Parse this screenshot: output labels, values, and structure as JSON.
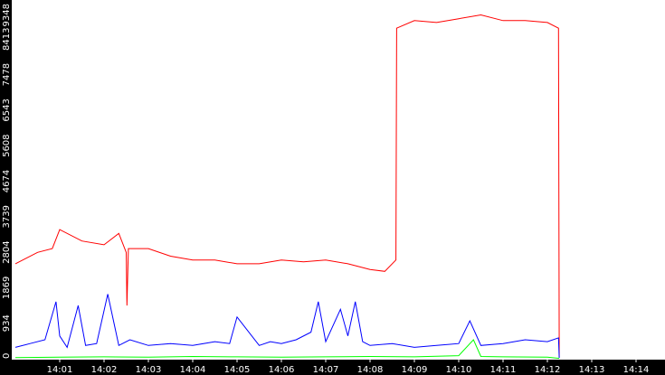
{
  "chart_data": {
    "type": "line",
    "title": "",
    "xlabel": "",
    "ylabel": "",
    "background": "#ffffff",
    "axis_background": "#000000",
    "tick_label_color": "#ffffff",
    "grid": false,
    "ylim": [
      0,
      9348
    ],
    "y_ticks": [
      "0",
      "934",
      "1869",
      "2804",
      "3739",
      "4674",
      "5608",
      "6543",
      "7478",
      "8413",
      "9348"
    ],
    "x_ticks": [
      "14:01",
      "14:02",
      "14:03",
      "14:04",
      "14:05",
      "14:06",
      "14:07",
      "14:08",
      "14:09",
      "14:10",
      "14:11",
      "14:12",
      "14:13",
      "14:14"
    ],
    "series": [
      {
        "color": "#ff0000",
        "x": [
          "14:00:00",
          "14:00:30",
          "14:00:50",
          "14:01:00",
          "14:01:30",
          "14:02:00",
          "14:02:20",
          "14:02:30",
          "14:02:31",
          "14:02:33",
          "14:03:00",
          "14:03:30",
          "14:04:00",
          "14:04:30",
          "14:05:00",
          "14:05:30",
          "14:06:00",
          "14:06:30",
          "14:07:00",
          "14:07:30",
          "14:08:00",
          "14:08:20",
          "14:08:35",
          "14:08:36",
          "14:09:00",
          "14:09:30",
          "14:10:00",
          "14:10:30",
          "14:11:00",
          "14:11:30",
          "14:12:00",
          "14:12:15",
          "14:12:16"
        ],
        "values": [
          2500,
          2800,
          2900,
          3400,
          3100,
          3000,
          3300,
          2800,
          1400,
          2900,
          2900,
          2700,
          2600,
          2600,
          2500,
          2500,
          2600,
          2550,
          2600,
          2500,
          2350,
          2300,
          2600,
          8700,
          8900,
          8850,
          8950,
          9050,
          8900,
          8900,
          8850,
          8700,
          50
        ]
      },
      {
        "color": "#0000ff",
        "x": [
          "14:00:00",
          "14:00:20",
          "14:00:40",
          "14:00:55",
          "14:01:00",
          "14:01:10",
          "14:01:25",
          "14:01:35",
          "14:01:50",
          "14:02:05",
          "14:02:20",
          "14:02:35",
          "14:03:00",
          "14:03:30",
          "14:04:00",
          "14:04:30",
          "14:04:50",
          "14:05:00",
          "14:05:30",
          "14:05:45",
          "14:06:00",
          "14:06:20",
          "14:06:40",
          "14:06:50",
          "14:07:00",
          "14:07:20",
          "14:07:30",
          "14:07:40",
          "14:07:50",
          "14:08:00",
          "14:08:30",
          "14:09:00",
          "14:09:30",
          "14:10:00",
          "14:10:15",
          "14:10:30",
          "14:11:00",
          "14:11:30",
          "14:12:00",
          "14:12:15",
          "14:12:16"
        ],
        "values": [
          300,
          400,
          500,
          1500,
          600,
          300,
          1400,
          350,
          400,
          1700,
          350,
          500,
          350,
          400,
          350,
          450,
          400,
          1100,
          350,
          450,
          400,
          500,
          700,
          1500,
          450,
          1300,
          600,
          1500,
          450,
          350,
          400,
          300,
          350,
          400,
          1000,
          350,
          400,
          500,
          450,
          550,
          20
        ]
      },
      {
        "color": "#00ff00",
        "x": [
          "14:00:00",
          "14:01:00",
          "14:02:00",
          "14:03:00",
          "14:04:00",
          "14:05:00",
          "14:06:00",
          "14:07:00",
          "14:08:00",
          "14:09:00",
          "14:10:00",
          "14:10:20",
          "14:10:30",
          "14:11:00",
          "14:12:00",
          "14:12:16"
        ],
        "values": [
          30,
          40,
          50,
          40,
          60,
          50,
          40,
          50,
          60,
          50,
          80,
          500,
          60,
          50,
          40,
          10
        ]
      }
    ]
  }
}
